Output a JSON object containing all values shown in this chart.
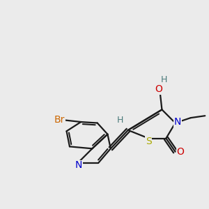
{
  "background_color": "#ebebeb",
  "bond_color": "#1a1a1a",
  "figsize": [
    3.0,
    3.0
  ],
  "dpi": 100,
  "atom_colors": {
    "C": "#1a1a1a",
    "N": "#0000cc",
    "O": "#cc0000",
    "S": "#aaaa00",
    "Br": "#cc6600",
    "H": "#4a7a7a"
  }
}
